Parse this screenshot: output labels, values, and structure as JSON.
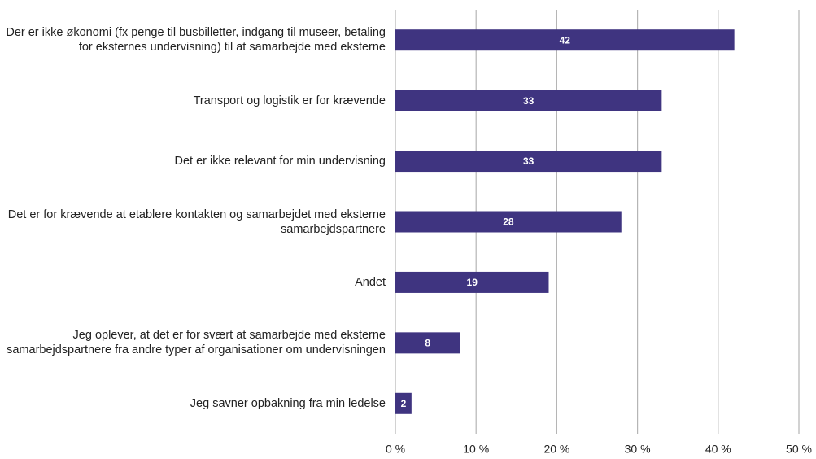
{
  "chart_data": {
    "type": "bar",
    "orientation": "horizontal",
    "categories": [
      "Der er ikke økonomi (fx penge til busbilletter, indgang til museer, betaling for eksternes undervisning) til at samarbejde med eksterne",
      "Transport og logistik er for krævende",
      "Det er ikke relevant for min undervisning",
      "Det er for krævende at etablere kontakten og samarbejdet med eksterne samarbejdspartnere",
      "Andet",
      "Jeg oplever, at det er for svært at samarbejde med eksterne samarbejdspartnere fra andre typer af organisationer om undervisningen",
      "Jeg savner opbakning fra min ledelse"
    ],
    "values": [
      42,
      33,
      33,
      28,
      19,
      8,
      2
    ],
    "color": "#3f3480",
    "xlim": [
      0,
      50
    ],
    "xticks": [
      {
        "value": 0,
        "label": "0 %"
      },
      {
        "value": 10,
        "label": "10 %"
      },
      {
        "value": 20,
        "label": "20 %"
      },
      {
        "value": 30,
        "label": "30 %"
      },
      {
        "value": 40,
        "label": "40 %"
      },
      {
        "value": 50,
        "label": "50 %"
      }
    ],
    "grid": true
  }
}
